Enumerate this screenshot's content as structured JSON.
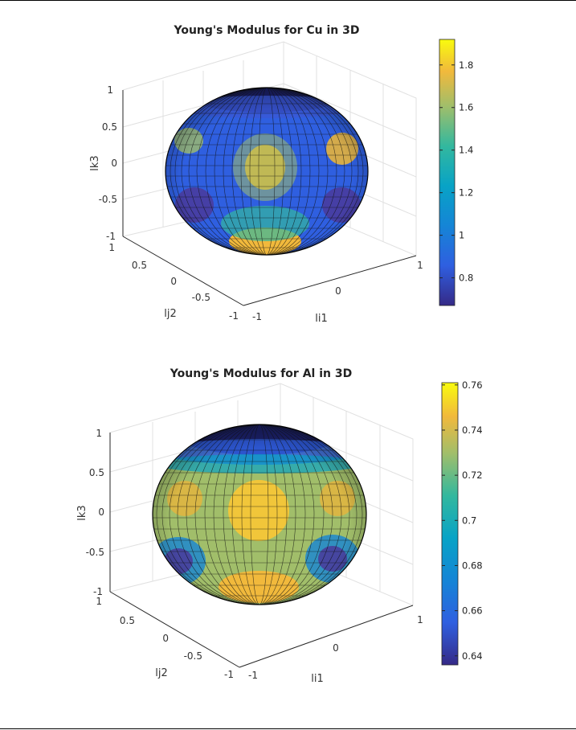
{
  "chart_data": [
    {
      "type": "surface-3d",
      "title": "Young's Modulus for Cu in 3D",
      "xlabel": "li1",
      "ylabel": "lj2",
      "zlabel": "lk3",
      "xlim": [
        -1,
        1
      ],
      "ylim": [
        -1,
        1
      ],
      "zlim": [
        -1,
        1
      ],
      "x_ticks": [
        "-1",
        "0",
        "1"
      ],
      "y_ticks": [
        "-1",
        "-0.5",
        "0",
        "0.5",
        "1"
      ],
      "z_ticks": [
        "-1",
        "-0.5",
        "0",
        "0.5",
        "1"
      ],
      "colorbar": {
        "min": 0.67,
        "max": 1.92,
        "ticks": [
          0.8,
          1,
          1.2,
          1.4,
          1.6,
          1.8
        ],
        "tick_labels": [
          "0.8",
          "1",
          "1.2",
          "1.4",
          "1.6",
          "1.8"
        ]
      },
      "colormap": "parula",
      "grid": true
    },
    {
      "type": "surface-3d",
      "title": "Young's Modulus for Al in 3D",
      "xlabel": "li1",
      "ylabel": "lj2",
      "zlabel": "lk3",
      "xlim": [
        -1,
        1
      ],
      "ylim": [
        -1,
        1
      ],
      "zlim": [
        -1,
        1
      ],
      "x_ticks": [
        "-1",
        "0",
        "1"
      ],
      "y_ticks": [
        "-1",
        "-0.5",
        "0",
        "0.5",
        "1"
      ],
      "z_ticks": [
        "-1",
        "-0.5",
        "0",
        "0.5",
        "1"
      ],
      "colorbar": {
        "min": 0.636,
        "max": 0.761,
        "ticks": [
          0.64,
          0.66,
          0.68,
          0.7,
          0.72,
          0.74,
          0.76
        ],
        "tick_labels": [
          "0.64",
          "0.66",
          "0.68",
          "0.7",
          "0.72",
          "0.74",
          "0.76"
        ]
      },
      "colormap": "parula",
      "grid": true
    }
  ]
}
